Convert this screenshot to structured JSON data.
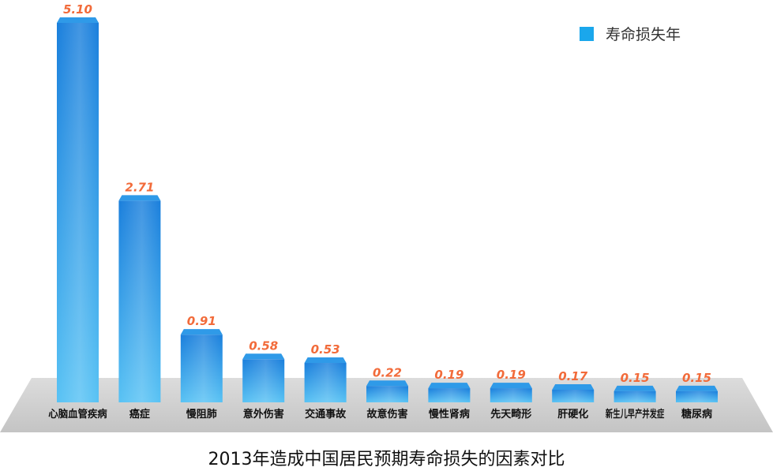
{
  "chart_data": {
    "type": "bar",
    "title": "2013年造成中国居民预期寿命损失的因素对比",
    "xlabel": "",
    "ylabel": "",
    "ylim": [
      0,
      5.1
    ],
    "grid": false,
    "legend_position": "top-right",
    "categories": [
      "心脑血管疾病",
      "癌症",
      "慢阻肺",
      "意外伤害",
      "交通事故",
      "故意伤害",
      "慢性肾病",
      "先天畸形",
      "肝硬化",
      "新生儿早产并发症",
      "糖尿病"
    ],
    "series": [
      {
        "name": "寿命损失年",
        "values": [
          5.1,
          2.71,
          0.91,
          0.58,
          0.53,
          0.22,
          0.19,
          0.19,
          0.17,
          0.15,
          0.15
        ],
        "value_labels": [
          "5.10",
          "2.71",
          "0.91",
          "0.58",
          "0.53",
          "0.22",
          "0.19",
          "0.19",
          "0.17",
          "0.15",
          "0.15"
        ]
      }
    ],
    "colors": {
      "bar_dark": "#1279d8",
      "bar_light": "#62c6f5",
      "bar_top": "#2f9ae8",
      "value_label": "#f26b3a",
      "floor": "#cfcfcf",
      "legend_swatch": "#1aa7ec"
    }
  }
}
